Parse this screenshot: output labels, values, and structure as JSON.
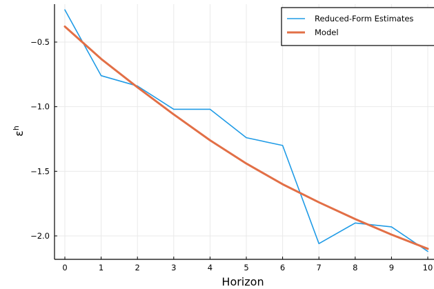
{
  "chart_data": {
    "type": "line",
    "xlabel": "Horizon",
    "ylabel": "ε^h",
    "xlim": [
      -0.3,
      10.1
    ],
    "ylim": [
      -2.19,
      -0.22
    ],
    "x_ticks": [
      0,
      1,
      2,
      3,
      4,
      5,
      6,
      7,
      8,
      9,
      10
    ],
    "y_ticks": [
      -0.5,
      -1.0,
      -1.5,
      -2.0
    ],
    "y_tick_labels": [
      "−0.5",
      "−1.0",
      "−1.5",
      "−2.0"
    ],
    "grid": true,
    "legend_position": "top-right",
    "series": [
      {
        "name": "Reduced-Form Estimates",
        "color": "#1f9be6",
        "x": [
          0,
          1,
          2,
          3,
          4,
          5,
          6,
          7,
          8,
          9,
          10
        ],
        "values": [
          -0.25,
          -0.76,
          -0.84,
          -1.02,
          -1.02,
          -1.24,
          -1.3,
          -2.06,
          -1.9,
          -1.93,
          -2.12
        ]
      },
      {
        "name": "Model",
        "color": "#e26f46",
        "x": [
          0,
          1,
          2,
          3,
          4,
          5,
          6,
          7,
          8,
          9,
          10
        ],
        "values": [
          -0.38,
          -0.63,
          -0.85,
          -1.06,
          -1.26,
          -1.44,
          -1.6,
          -1.74,
          -1.87,
          -1.99,
          -2.1
        ]
      }
    ]
  }
}
